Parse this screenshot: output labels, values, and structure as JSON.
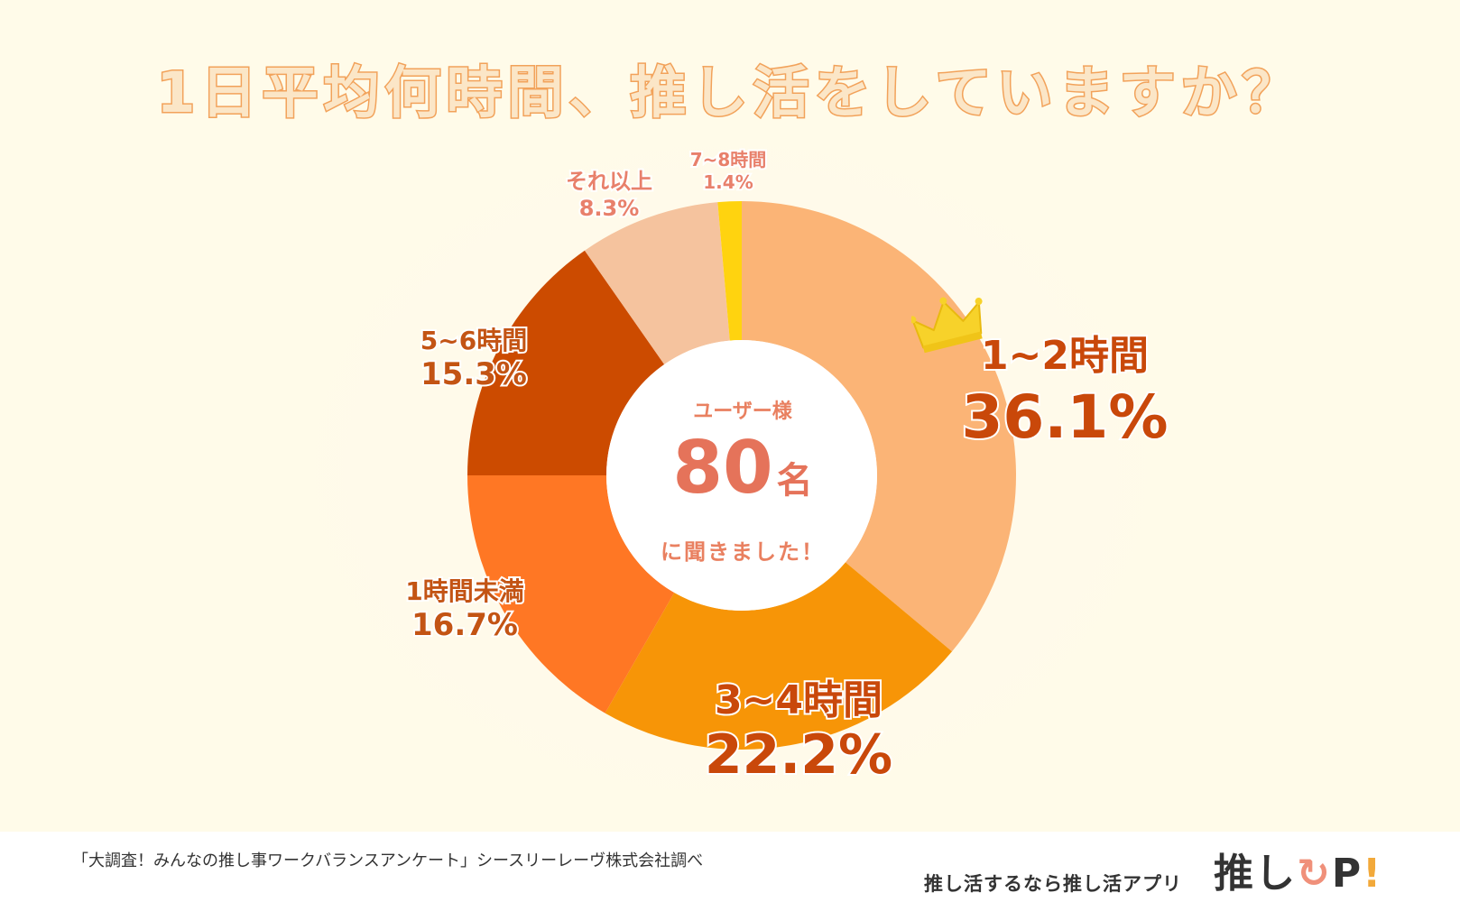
{
  "title": "1日平均何時間、推し活をしていますか？",
  "center": {
    "users_label": "ユーザー様",
    "count": "80",
    "count_unit": "名",
    "asked": "に聞きました！"
  },
  "chart_data": {
    "type": "pie",
    "title": "1日平均何時間、推し活をしていますか？",
    "unit": "%",
    "slices": [
      {
        "label": "1~2時間",
        "value": 36.1,
        "display": "36.1%",
        "color": "#fbb476"
      },
      {
        "label": "3~4時間",
        "value": 22.2,
        "display": "22.2%",
        "color": "#f79507"
      },
      {
        "label": "1時間未満",
        "value": 16.7,
        "display": "16.7%",
        "color": "#ff7724"
      },
      {
        "label": "5~6時間",
        "value": 15.3,
        "display": "15.3%",
        "color": "#cc4b00"
      },
      {
        "label": "それ以上",
        "value": 8.3,
        "display": "8.3%",
        "color": "#f5c39e"
      },
      {
        "label": "7~8時間",
        "value": 1.4,
        "display": "1.4%",
        "color": "#ffd30f"
      }
    ],
    "label_colors": {
      "large": "#c9480a",
      "medium": "#c35414",
      "small": "#e8806b"
    },
    "highlight": "1~2時間"
  },
  "footer": {
    "source": "「大調査！みんなの推し事ワークバランスアンケート」シースリーレーヴ株式会社調べ",
    "tagline": "推し活するなら推し活アプリ",
    "brand_text": "推し",
    "brand_arrow": "↻",
    "brand_p": "P",
    "brand_bang": "!"
  }
}
